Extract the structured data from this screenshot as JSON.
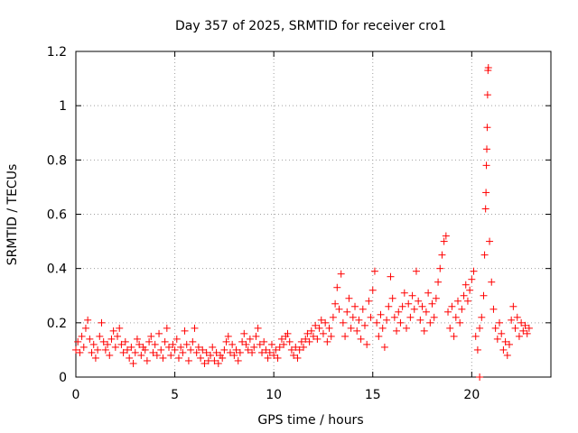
{
  "chart_data": {
    "type": "scatter",
    "title": "Day 357 of 2025, SRMTID for receiver cro1",
    "xlabel": "GPS time / hours",
    "ylabel": "SRMTID / TECUs",
    "xlim": [
      0,
      24
    ],
    "ylim": [
      0,
      1.2
    ],
    "xticks": [
      0,
      5,
      10,
      15,
      20
    ],
    "xtick_labels": [
      "0",
      "5",
      "10",
      "15",
      "20"
    ],
    "yticks": [
      0,
      0.2,
      0.4,
      0.6,
      0.8,
      1.0,
      1.2
    ],
    "ytick_labels": [
      "0",
      "0.2",
      "0.4",
      "0.6",
      "0.8",
      "1",
      "1.2"
    ],
    "grid": true,
    "marker": "+",
    "marker_color": "#ff0000",
    "series": [
      {
        "name": "SRMTID",
        "points": [
          [
            0.0,
            0.1
          ],
          [
            0.1,
            0.13
          ],
          [
            0.2,
            0.09
          ],
          [
            0.3,
            0.15
          ],
          [
            0.4,
            0.11
          ],
          [
            0.5,
            0.18
          ],
          [
            0.6,
            0.21
          ],
          [
            0.7,
            0.14
          ],
          [
            0.8,
            0.09
          ],
          [
            0.9,
            0.12
          ],
          [
            1.0,
            0.07
          ],
          [
            1.1,
            0.1
          ],
          [
            1.2,
            0.15
          ],
          [
            1.3,
            0.2
          ],
          [
            1.4,
            0.13
          ],
          [
            1.5,
            0.1
          ],
          [
            1.6,
            0.12
          ],
          [
            1.7,
            0.08
          ],
          [
            1.8,
            0.14
          ],
          [
            1.9,
            0.17
          ],
          [
            2.0,
            0.11
          ],
          [
            2.1,
            0.15
          ],
          [
            2.2,
            0.18
          ],
          [
            2.3,
            0.12
          ],
          [
            2.4,
            0.09
          ],
          [
            2.5,
            0.13
          ],
          [
            2.6,
            0.1
          ],
          [
            2.7,
            0.07
          ],
          [
            2.8,
            0.11
          ],
          [
            2.9,
            0.05
          ],
          [
            3.0,
            0.09
          ],
          [
            3.1,
            0.14
          ],
          [
            3.2,
            0.12
          ],
          [
            3.3,
            0.08
          ],
          [
            3.4,
            0.11
          ],
          [
            3.5,
            0.1
          ],
          [
            3.6,
            0.06
          ],
          [
            3.7,
            0.13
          ],
          [
            3.8,
            0.15
          ],
          [
            3.9,
            0.09
          ],
          [
            4.0,
            0.12
          ],
          [
            4.1,
            0.08
          ],
          [
            4.2,
            0.16
          ],
          [
            4.3,
            0.1
          ],
          [
            4.4,
            0.07
          ],
          [
            4.5,
            0.13
          ],
          [
            4.6,
            0.18
          ],
          [
            4.7,
            0.11
          ],
          [
            4.8,
            0.08
          ],
          [
            4.9,
            0.12
          ],
          [
            5.0,
            0.1
          ],
          [
            5.1,
            0.14
          ],
          [
            5.2,
            0.07
          ],
          [
            5.3,
            0.11
          ],
          [
            5.4,
            0.09
          ],
          [
            5.5,
            0.17
          ],
          [
            5.6,
            0.12
          ],
          [
            5.7,
            0.06
          ],
          [
            5.8,
            0.1
          ],
          [
            5.9,
            0.13
          ],
          [
            6.0,
            0.18
          ],
          [
            6.1,
            0.09
          ],
          [
            6.2,
            0.11
          ],
          [
            6.3,
            0.07
          ],
          [
            6.4,
            0.1
          ],
          [
            6.5,
            0.05
          ],
          [
            6.6,
            0.09
          ],
          [
            6.7,
            0.06
          ],
          [
            6.8,
            0.08
          ],
          [
            6.9,
            0.11
          ],
          [
            7.0,
            0.06
          ],
          [
            7.1,
            0.09
          ],
          [
            7.2,
            0.05
          ],
          [
            7.3,
            0.08
          ],
          [
            7.4,
            0.07
          ],
          [
            7.5,
            0.1
          ],
          [
            7.6,
            0.13
          ],
          [
            7.7,
            0.15
          ],
          [
            7.8,
            0.09
          ],
          [
            7.9,
            0.12
          ],
          [
            8.0,
            0.08
          ],
          [
            8.1,
            0.1
          ],
          [
            8.2,
            0.06
          ],
          [
            8.3,
            0.09
          ],
          [
            8.4,
            0.13
          ],
          [
            8.5,
            0.16
          ],
          [
            8.6,
            0.12
          ],
          [
            8.7,
            0.1
          ],
          [
            8.8,
            0.14
          ],
          [
            8.9,
            0.09
          ],
          [
            9.0,
            0.11
          ],
          [
            9.1,
            0.15
          ],
          [
            9.2,
            0.18
          ],
          [
            9.3,
            0.12
          ],
          [
            9.4,
            0.09
          ],
          [
            9.5,
            0.13
          ],
          [
            9.6,
            0.1
          ],
          [
            9.7,
            0.07
          ],
          [
            9.8,
            0.09
          ],
          [
            9.9,
            0.12
          ],
          [
            10.0,
            0.08
          ],
          [
            10.1,
            0.1
          ],
          [
            10.2,
            0.07
          ],
          [
            10.3,
            0.11
          ],
          [
            10.4,
            0.14
          ],
          [
            10.5,
            0.12
          ],
          [
            10.6,
            0.15
          ],
          [
            10.7,
            0.16
          ],
          [
            10.8,
            0.13
          ],
          [
            10.9,
            0.1
          ],
          [
            11.0,
            0.08
          ],
          [
            11.1,
            0.11
          ],
          [
            11.2,
            0.07
          ],
          [
            11.3,
            0.1
          ],
          [
            11.4,
            0.13
          ],
          [
            11.5,
            0.11
          ],
          [
            11.6,
            0.14
          ],
          [
            11.7,
            0.16
          ],
          [
            11.8,
            0.13
          ],
          [
            11.9,
            0.17
          ],
          [
            12.0,
            0.15
          ],
          [
            12.1,
            0.19
          ],
          [
            12.2,
            0.14
          ],
          [
            12.3,
            0.18
          ],
          [
            12.4,
            0.21
          ],
          [
            12.5,
            0.16
          ],
          [
            12.6,
            0.2
          ],
          [
            12.7,
            0.13
          ],
          [
            12.8,
            0.18
          ],
          [
            12.9,
            0.15
          ],
          [
            13.0,
            0.22
          ],
          [
            13.1,
            0.27
          ],
          [
            13.2,
            0.33
          ],
          [
            13.3,
            0.25
          ],
          [
            13.4,
            0.38
          ],
          [
            13.5,
            0.2
          ],
          [
            13.6,
            0.15
          ],
          [
            13.7,
            0.24
          ],
          [
            13.8,
            0.29
          ],
          [
            13.9,
            0.18
          ],
          [
            14.0,
            0.22
          ],
          [
            14.1,
            0.26
          ],
          [
            14.2,
            0.17
          ],
          [
            14.3,
            0.21
          ],
          [
            14.4,
            0.14
          ],
          [
            14.5,
            0.25
          ],
          [
            14.6,
            0.19
          ],
          [
            14.7,
            0.12
          ],
          [
            14.8,
            0.28
          ],
          [
            14.9,
            0.22
          ],
          [
            15.0,
            0.32
          ],
          [
            15.1,
            0.39
          ],
          [
            15.2,
            0.2
          ],
          [
            15.3,
            0.15
          ],
          [
            15.4,
            0.23
          ],
          [
            15.5,
            0.18
          ],
          [
            15.6,
            0.11
          ],
          [
            15.7,
            0.21
          ],
          [
            15.8,
            0.26
          ],
          [
            15.9,
            0.37
          ],
          [
            16.0,
            0.29
          ],
          [
            16.1,
            0.22
          ],
          [
            16.2,
            0.17
          ],
          [
            16.3,
            0.24
          ],
          [
            16.4,
            0.2
          ],
          [
            16.5,
            0.26
          ],
          [
            16.6,
            0.31
          ],
          [
            16.7,
            0.18
          ],
          [
            16.8,
            0.27
          ],
          [
            16.9,
            0.22
          ],
          [
            17.0,
            0.3
          ],
          [
            17.1,
            0.25
          ],
          [
            17.2,
            0.39
          ],
          [
            17.3,
            0.28
          ],
          [
            17.4,
            0.21
          ],
          [
            17.5,
            0.26
          ],
          [
            17.6,
            0.17
          ],
          [
            17.7,
            0.24
          ],
          [
            17.8,
            0.31
          ],
          [
            17.9,
            0.2
          ],
          [
            18.0,
            0.27
          ],
          [
            18.1,
            0.22
          ],
          [
            18.2,
            0.29
          ],
          [
            18.3,
            0.35
          ],
          [
            18.4,
            0.4
          ],
          [
            18.5,
            0.45
          ],
          [
            18.6,
            0.5
          ],
          [
            18.7,
            0.52
          ],
          [
            18.8,
            0.24
          ],
          [
            18.9,
            0.18
          ],
          [
            19.0,
            0.26
          ],
          [
            19.1,
            0.15
          ],
          [
            19.2,
            0.22
          ],
          [
            19.3,
            0.28
          ],
          [
            19.4,
            0.2
          ],
          [
            19.5,
            0.25
          ],
          [
            19.6,
            0.3
          ],
          [
            19.7,
            0.34
          ],
          [
            19.8,
            0.28
          ],
          [
            19.9,
            0.32
          ],
          [
            20.0,
            0.36
          ],
          [
            20.1,
            0.39
          ],
          [
            20.2,
            0.15
          ],
          [
            20.3,
            0.1
          ],
          [
            20.4,
            0.18
          ],
          [
            20.5,
            0.22
          ],
          [
            20.6,
            0.3
          ],
          [
            20.65,
            0.45
          ],
          [
            20.7,
            0.62
          ],
          [
            20.72,
            0.68
          ],
          [
            20.74,
            0.78
          ],
          [
            20.76,
            0.84
          ],
          [
            20.78,
            0.92
          ],
          [
            20.8,
            1.04
          ],
          [
            20.82,
            1.13
          ],
          [
            20.84,
            1.14
          ],
          [
            20.9,
            0.5
          ],
          [
            21.0,
            0.35
          ],
          [
            21.1,
            0.25
          ],
          [
            21.2,
            0.18
          ],
          [
            21.3,
            0.14
          ],
          [
            21.4,
            0.2
          ],
          [
            21.5,
            0.16
          ],
          [
            21.6,
            0.1
          ],
          [
            21.7,
            0.13
          ],
          [
            21.8,
            0.08
          ],
          [
            21.9,
            0.12
          ],
          [
            22.0,
            0.21
          ],
          [
            22.1,
            0.26
          ],
          [
            22.2,
            0.18
          ],
          [
            22.3,
            0.22
          ],
          [
            22.4,
            0.15
          ],
          [
            22.5,
            0.2
          ],
          [
            22.6,
            0.17
          ],
          [
            22.7,
            0.19
          ],
          [
            22.8,
            0.16
          ],
          [
            22.9,
            0.18
          ],
          [
            20.4,
            0.0
          ]
        ]
      }
    ]
  }
}
